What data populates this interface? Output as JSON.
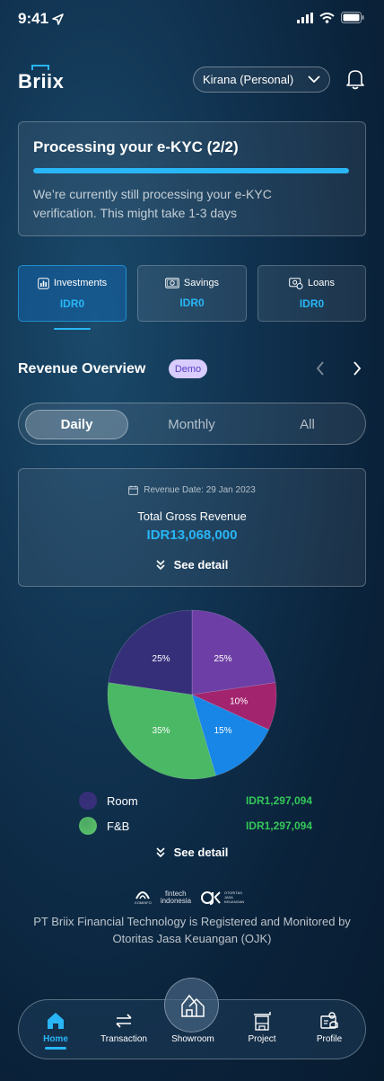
{
  "status_bar": {
    "time": "9:41"
  },
  "header": {
    "logo": "Briix",
    "account": "Kirana (Personal)"
  },
  "kyc": {
    "title": "Processing your e-KYC (2/2)",
    "progress": 1.0,
    "description": "We’re currently still processing your e-KYC verification. This might take 1-3 days"
  },
  "products": [
    {
      "label": "Investments",
      "value": "IDR0",
      "icon": "investments-icon",
      "active": true
    },
    {
      "label": "Savings",
      "value": "IDR0",
      "icon": "savings-icon",
      "active": false
    },
    {
      "label": "Loans",
      "value": "IDR0",
      "icon": "loans-icon",
      "active": false
    }
  ],
  "revenue_overview": {
    "title": "Revenue Overview",
    "badge": "Demo",
    "periods": [
      "Daily",
      "Monthly",
      "All"
    ],
    "selected_period": "Daily",
    "date_label": "Revenue Date: 29 Jan 2023",
    "total_label": "Total Gross Revenue",
    "total_amount": "IDR13,068,000",
    "see_detail": "See detail"
  },
  "chart_data": {
    "type": "pie",
    "slices": [
      {
        "label": "25%",
        "value": 25,
        "color": "#6d3fa6"
      },
      {
        "label": "10%",
        "value": 10,
        "color": "#a3246e"
      },
      {
        "label": "15%",
        "value": 15,
        "color": "#1786e6"
      },
      {
        "label": "35%",
        "value": 35,
        "color": "#4ab864"
      },
      {
        "label": "25%",
        "value": 25,
        "color": "#352f7a"
      }
    ]
  },
  "legend": [
    {
      "name": "Room",
      "value": "IDR1,297,094",
      "color": "#3b2f7f"
    },
    {
      "name": "F&B",
      "value": "IDR1,297,094",
      "color": "#5cc66a"
    }
  ],
  "legend_see_detail": "See detail",
  "footer": {
    "logos": [
      "KOMINFO",
      "fintech indonesia",
      "OTORITAS JASA KEUANGAN"
    ],
    "text": "PT Briix Financial Technology is Registered and Monitored by Otoritas Jasa Keuangan (OJK)"
  },
  "bottom_nav": [
    {
      "label": "Home",
      "icon": "home-icon",
      "active": true
    },
    {
      "label": "Transaction",
      "icon": "transaction-icon",
      "active": false
    },
    {
      "label": "Showroom",
      "icon": "showroom-icon",
      "active": false
    },
    {
      "label": "Project",
      "icon": "project-icon",
      "active": false
    },
    {
      "label": "Profile",
      "icon": "profile-icon",
      "active": false
    }
  ],
  "colors": {
    "accent": "#29b6f6",
    "positive": "#34c759",
    "badge_bg": "#d9ccff"
  }
}
